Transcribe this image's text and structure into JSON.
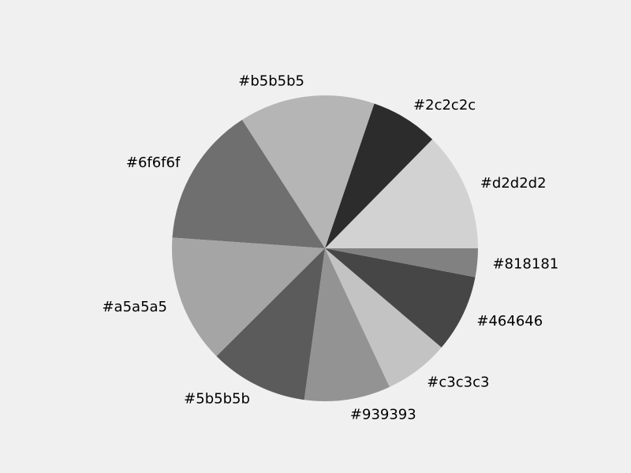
{
  "chart_data": {
    "type": "pie",
    "start_angle_deg": 0,
    "direction": "counterclockwise",
    "slices": [
      {
        "label": "#d2d2d2",
        "color": "#d2d2d2",
        "value": 13.13
      },
      {
        "label": "#2c2c2c",
        "color": "#2c2c2c",
        "value": 7.44
      },
      {
        "label": "#b5b5b5",
        "color": "#b5b5b5",
        "value": 14.91
      },
      {
        "label": "#6f6f6f",
        "color": "#6f6f6f",
        "value": 15.36
      },
      {
        "label": "#a5a5a5",
        "color": "#a5a5a5",
        "value": 14.12
      },
      {
        "label": "#5b5b5b",
        "color": "#5b5b5b",
        "value": 10.79
      },
      {
        "label": "#939393",
        "color": "#939393",
        "value": 9.47
      },
      {
        "label": "#c3c3c3",
        "color": "#c3c3c3",
        "value": 7.11
      },
      {
        "label": "#464646",
        "color": "#464646",
        "value": 8.53
      },
      {
        "label": "#818181",
        "color": "#818181",
        "value": 3.14
      }
    ]
  }
}
